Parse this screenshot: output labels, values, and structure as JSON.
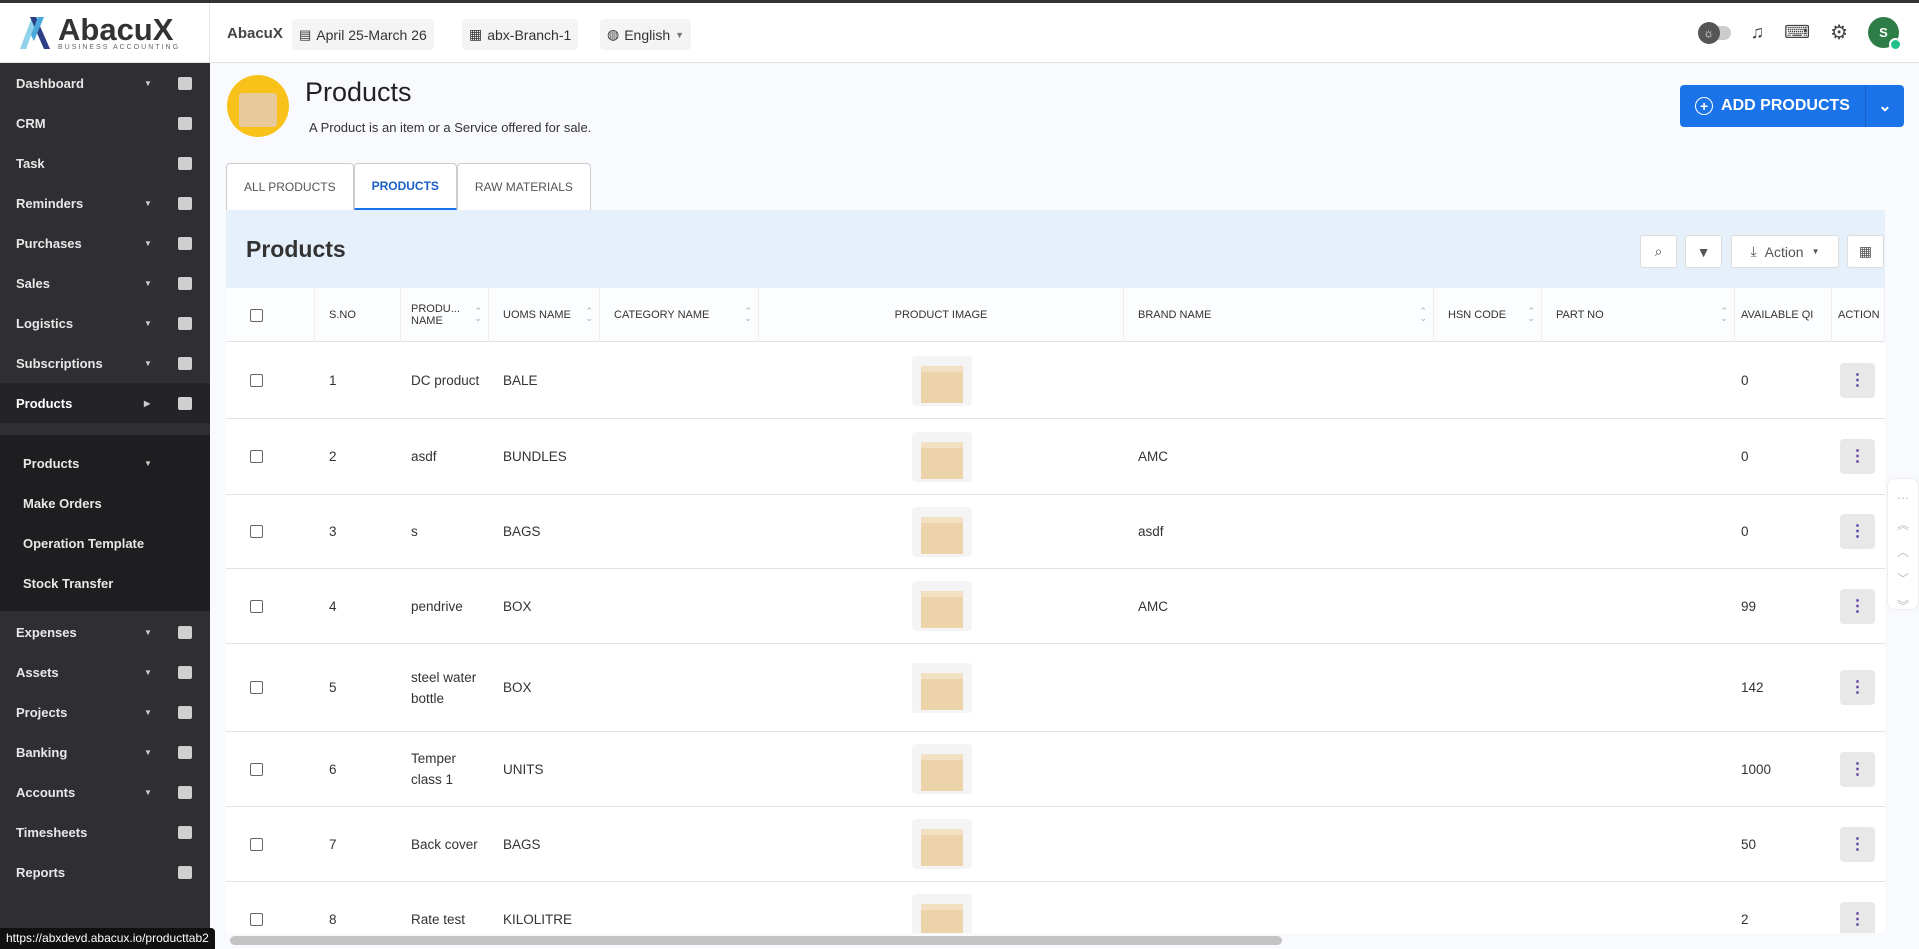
{
  "brand": {
    "name": "AbacuX",
    "tagline": "BUSINESS ACCOUNTING"
  },
  "topbar": {
    "org": "AbacuX",
    "fiscal_year": "April 25-March 26",
    "branch": "abx-Branch-1",
    "language": "English",
    "avatar_initial": "S"
  },
  "sidebar": {
    "items": [
      {
        "label": "Dashboard",
        "icon": "home-icon",
        "caret": true
      },
      {
        "label": "CRM",
        "icon": "grid-icon",
        "caret": false
      },
      {
        "label": "Task",
        "icon": "document-icon",
        "caret": false
      },
      {
        "label": "Reminders",
        "icon": "clock-icon",
        "caret": true
      },
      {
        "label": "Purchases",
        "icon": "briefcase-icon",
        "caret": true
      },
      {
        "label": "Sales",
        "icon": "cart-icon",
        "caret": true
      },
      {
        "label": "Logistics",
        "icon": "document-icon",
        "caret": true
      },
      {
        "label": "Subscriptions",
        "icon": "document-icon",
        "caret": true
      },
      {
        "label": "Products",
        "icon": "archive-icon",
        "caret": true,
        "active": true
      }
    ],
    "subitems": [
      {
        "label": "Products",
        "caret": true
      },
      {
        "label": "Make Orders"
      },
      {
        "label": "Operation Template"
      },
      {
        "label": "Stock Transfer"
      }
    ],
    "items_after": [
      {
        "label": "Expenses",
        "icon": "wallet-icon"
      },
      {
        "label": "Assets",
        "icon": "building-icon"
      },
      {
        "label": "Projects",
        "icon": "calendar-icon"
      },
      {
        "label": "Banking",
        "icon": "bank-icon"
      },
      {
        "label": "Accounts",
        "icon": "person-icon"
      },
      {
        "label": "Timesheets",
        "icon": "document-icon",
        "caret": false
      },
      {
        "label": "Reports",
        "icon": "document-icon",
        "caret": false
      }
    ]
  },
  "status_url": "https://abxdevd.abacux.io/producttab2",
  "page": {
    "title": "Products",
    "subtitle": "A Product is an item or a Service offered for sale.",
    "add_button": "ADD PRODUCTS"
  },
  "tabs": [
    "ALL PRODUCTS",
    "PRODUCTS",
    "RAW MATERIALS"
  ],
  "panel": {
    "title": "Products",
    "action_label": "Action"
  },
  "table": {
    "columns": [
      "S.NO",
      "PRODU... NAME",
      "UOMS NAME",
      "CATEGORY NAME",
      "PRODUCT IMAGE",
      "BRAND NAME",
      "HSN CODE",
      "PART NO",
      "AVAILABLE QI",
      "ACTION"
    ],
    "rows": [
      {
        "sno": "1",
        "name": "DC product",
        "uom": "BALE",
        "brand": "",
        "qty": "0"
      },
      {
        "sno": "2",
        "name": "asdf",
        "uom": "BUNDLES",
        "brand": "AMC",
        "qty": "0"
      },
      {
        "sno": "3",
        "name": "s",
        "uom": "BAGS",
        "brand": "asdf",
        "qty": "0"
      },
      {
        "sno": "4",
        "name": "pendrive",
        "uom": "BOX",
        "brand": "AMC",
        "qty": "99"
      },
      {
        "sno": "5",
        "name": "steel water bottle",
        "uom": "BOX",
        "brand": "",
        "qty": "142"
      },
      {
        "sno": "6",
        "name": "Temper class 1",
        "uom": "UNITS",
        "brand": "",
        "qty": "1000"
      },
      {
        "sno": "7",
        "name": "Back cover",
        "uom": "BAGS",
        "brand": "",
        "qty": "50"
      },
      {
        "sno": "8",
        "name": "Rate test",
        "uom": "KILOLITRE",
        "brand": "",
        "qty": "2"
      }
    ]
  },
  "colors": {
    "accent": "#1a73e8",
    "sidebar": "#2f2f33",
    "panel": "#e5f0fa"
  }
}
